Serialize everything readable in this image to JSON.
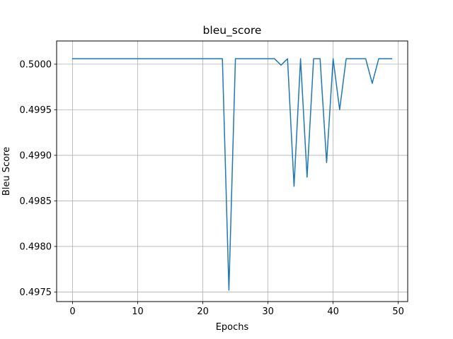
{
  "chart_data": {
    "type": "line",
    "title": "bleu_score",
    "xlabel": "Epochs",
    "ylabel": "Bleu Score",
    "xlim": [
      -2.45,
      51.45
    ],
    "ylim": [
      0.497395,
      0.500255
    ],
    "xticks": [
      0,
      10,
      20,
      30,
      40,
      50
    ],
    "yticks": [
      0.4975,
      0.498,
      0.4985,
      0.499,
      0.4995,
      0.5
    ],
    "ytick_labels": [
      "0.4975",
      "0.4980",
      "0.4985",
      "0.4990",
      "0.4995",
      "0.5000"
    ],
    "grid": true,
    "legend": false,
    "colors": {
      "line": "#1f77b4",
      "grid": "#b0b0b0",
      "axes": "#000000"
    },
    "series": [
      {
        "x": [
          0,
          1,
          2,
          3,
          4,
          5,
          6,
          7,
          8,
          9,
          10,
          11,
          12,
          13,
          14,
          15,
          16,
          17,
          18,
          19,
          20,
          21,
          22,
          23,
          24,
          25,
          26,
          27,
          28,
          29,
          30,
          31,
          32,
          33,
          34,
          35,
          36,
          37,
          38,
          39,
          40,
          41,
          42,
          43,
          44,
          45,
          46,
          47,
          48,
          49
        ],
        "values": [
          0.50006,
          0.50006,
          0.50006,
          0.50006,
          0.50006,
          0.50006,
          0.50006,
          0.50006,
          0.50006,
          0.50006,
          0.50006,
          0.50006,
          0.50006,
          0.50006,
          0.50006,
          0.50006,
          0.50006,
          0.50006,
          0.50006,
          0.50006,
          0.50006,
          0.50006,
          0.50006,
          0.50006,
          0.49752,
          0.50006,
          0.50006,
          0.50006,
          0.50006,
          0.50006,
          0.50006,
          0.50006,
          0.49999,
          0.50006,
          0.49866,
          0.50006,
          0.49876,
          0.50006,
          0.50006,
          0.49892,
          0.50006,
          0.4995,
          0.50006,
          0.50006,
          0.50006,
          0.50006,
          0.49979,
          0.50006,
          0.50006,
          0.50006
        ]
      }
    ]
  }
}
